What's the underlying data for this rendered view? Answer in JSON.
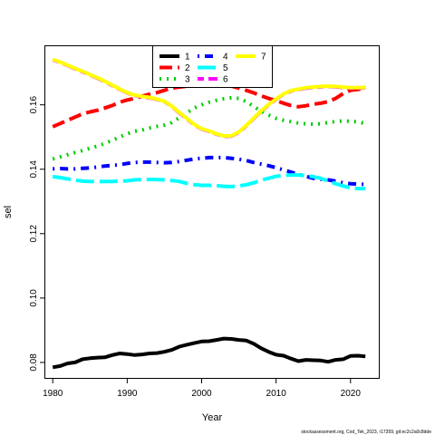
{
  "chart_data": {
    "type": "line",
    "title": "",
    "xlabel": "Year",
    "ylabel": "sel",
    "xlim": [
      1979.0,
      2023.8
    ],
    "ylim": [
      0.0752,
      0.1782
    ],
    "xticks": [
      1980,
      1990,
      2000,
      2010,
      2020
    ],
    "yticks": [
      0.08,
      0.1,
      0.12,
      0.14,
      0.16
    ],
    "ytick_labels": [
      "0.08",
      "0.10",
      "0.12",
      "0.14",
      "0.16"
    ],
    "grid": false,
    "legend_position": "top-center",
    "x": [
      1980,
      1981,
      1982,
      1983,
      1984,
      1985,
      1986,
      1987,
      1988,
      1989,
      1990,
      1991,
      1992,
      1993,
      1994,
      1995,
      1996,
      1997,
      1998,
      1999,
      2000,
      2001,
      2002,
      2003,
      2004,
      2005,
      2006,
      2007,
      2008,
      2009,
      2010,
      2011,
      2012,
      2013,
      2014,
      2015,
      2016,
      2017,
      2018,
      2019,
      2020,
      2021,
      2022
    ],
    "series": [
      {
        "name": "1",
        "color": "#000000",
        "dash": "solid",
        "values": [
          0.0785,
          0.0789,
          0.0797,
          0.08,
          0.081,
          0.0813,
          0.0815,
          0.0816,
          0.0823,
          0.0828,
          0.0826,
          0.0823,
          0.0825,
          0.0828,
          0.0829,
          0.0833,
          0.0839,
          0.0849,
          0.0855,
          0.086,
          0.0865,
          0.0866,
          0.087,
          0.0874,
          0.0873,
          0.087,
          0.0868,
          0.0858,
          0.0844,
          0.0833,
          0.0824,
          0.0821,
          0.0812,
          0.0804,
          0.0808,
          0.0807,
          0.0806,
          0.0802,
          0.0808,
          0.081,
          0.082,
          0.0821,
          0.0819
        ]
      },
      {
        "name": "2",
        "color": "#ff0000",
        "dash": "dash",
        "values": [
          0.1532,
          0.1542,
          0.1552,
          0.1562,
          0.1572,
          0.1578,
          0.1583,
          0.159,
          0.1598,
          0.1608,
          0.1615,
          0.162,
          0.1627,
          0.1633,
          0.1638,
          0.1645,
          0.1652,
          0.1655,
          0.1658,
          0.166,
          0.1662,
          0.1662,
          0.1661,
          0.166,
          0.1658,
          0.1652,
          0.1645,
          0.1637,
          0.1628,
          0.162,
          0.1613,
          0.1605,
          0.1598,
          0.1594,
          0.1597,
          0.1602,
          0.1605,
          0.161,
          0.162,
          0.1635,
          0.1645,
          0.1648,
          0.165
        ]
      },
      {
        "name": "3",
        "color": "#00cd00",
        "dash": "dot",
        "values": [
          0.1432,
          0.1438,
          0.1445,
          0.1452,
          0.1458,
          0.1465,
          0.1472,
          0.148,
          0.149,
          0.15,
          0.151,
          0.1518,
          0.1522,
          0.1528,
          0.1533,
          0.1537,
          0.1545,
          0.156,
          0.1575,
          0.159,
          0.16,
          0.1608,
          0.1614,
          0.1619,
          0.1622,
          0.162,
          0.161,
          0.1595,
          0.158,
          0.1568,
          0.1558,
          0.1552,
          0.1548,
          0.1543,
          0.1541,
          0.154,
          0.1541,
          0.1545,
          0.1548,
          0.155,
          0.1549,
          0.1547,
          0.1542
        ]
      },
      {
        "name": "4",
        "color": "#0000ff",
        "dash": "dotdash",
        "values": [
          0.1401,
          0.1402,
          0.1401,
          0.1401,
          0.1403,
          0.1404,
          0.1407,
          0.141,
          0.1412,
          0.1414,
          0.1418,
          0.1421,
          0.1422,
          0.1422,
          0.1421,
          0.142,
          0.1421,
          0.1424,
          0.1428,
          0.1432,
          0.1434,
          0.1436,
          0.1436,
          0.1436,
          0.1434,
          0.1431,
          0.1427,
          0.1421,
          0.1416,
          0.1411,
          0.1405,
          0.1398,
          0.1391,
          0.1384,
          0.1378,
          0.1372,
          0.1369,
          0.1367,
          0.1363,
          0.1358,
          0.1355,
          0.1354,
          0.1353
        ]
      },
      {
        "name": "5",
        "color": "#00ffff",
        "dash": "longdash",
        "values": [
          0.1377,
          0.1374,
          0.137,
          0.1366,
          0.1363,
          0.1362,
          0.1362,
          0.1362,
          0.1362,
          0.1363,
          0.1364,
          0.1367,
          0.1368,
          0.1368,
          0.1368,
          0.1367,
          0.1365,
          0.1362,
          0.1356,
          0.1352,
          0.135,
          0.135,
          0.1349,
          0.1347,
          0.1346,
          0.1348,
          0.1352,
          0.1358,
          0.1366,
          0.1372,
          0.1378,
          0.1381,
          0.1382,
          0.1382,
          0.138,
          0.1377,
          0.1372,
          0.1363,
          0.1355,
          0.1348,
          0.1342,
          0.134,
          0.134
        ]
      },
      {
        "name": "6",
        "color": "#ff00ff",
        "dash": "twodash",
        "values": [
          0.174,
          0.1732,
          0.1722,
          0.1712,
          0.1703,
          0.1693,
          0.1683,
          0.1672,
          0.166,
          0.1648,
          0.1637,
          0.1629,
          0.1625,
          0.1622,
          0.1617,
          0.161,
          0.1595,
          0.1575,
          0.1557,
          0.1538,
          0.1525,
          0.1518,
          0.1509,
          0.1502,
          0.1503,
          0.1515,
          0.1535,
          0.1558,
          0.158,
          0.16,
          0.1617,
          0.1633,
          0.1643,
          0.1648,
          0.1652,
          0.1654,
          0.1656,
          0.1657,
          0.1656,
          0.1654,
          0.1652,
          0.1652,
          0.1653
        ]
      },
      {
        "name": "7",
        "color": "#ffff00",
        "dash": "solid",
        "values": [
          0.1741,
          0.1733,
          0.1723,
          0.1713,
          0.1704,
          0.1694,
          0.1684,
          0.1673,
          0.1661,
          0.1649,
          0.1638,
          0.163,
          0.1626,
          0.1623,
          0.1618,
          0.1611,
          0.1596,
          0.1576,
          0.1558,
          0.1539,
          0.1526,
          0.1519,
          0.151,
          0.1503,
          0.1504,
          0.1516,
          0.1536,
          0.1559,
          0.1581,
          0.1601,
          0.1618,
          0.1634,
          0.1644,
          0.1649,
          0.1653,
          0.1655,
          0.1657,
          0.1658,
          0.1657,
          0.1655,
          0.1653,
          0.1653,
          0.1654
        ]
      }
    ]
  },
  "footnote": "stockassessment.org, Cod_Tek_2023, r17359, git:ec2c2a0c8dde"
}
